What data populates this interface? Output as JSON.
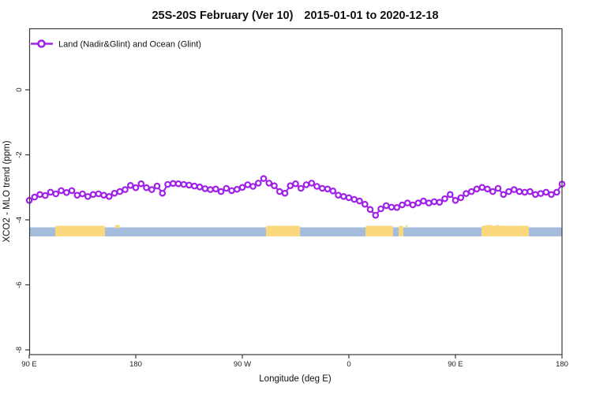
{
  "title": {
    "main": "25S-20S February (Ver 10)",
    "dates": "2015-01-01 to 2020-12-18"
  },
  "legend": {
    "label": "Land (Nadir&Glint) and Ocean (Glint)",
    "marker": "open-circle",
    "marker_color": "#A021E8"
  },
  "axes": {
    "x": {
      "label": "Longitude (deg E)",
      "ticks": [
        {
          "value": 90,
          "label": "90 E"
        },
        {
          "value": 180,
          "label": "180"
        },
        {
          "value": 270,
          "label": "90 W"
        },
        {
          "value": 360,
          "label": "0"
        },
        {
          "value": 450,
          "label": "90 E"
        },
        {
          "value": 540,
          "label": "180"
        }
      ]
    },
    "y": {
      "label": "XCO2 - MLO trend (ppm)",
      "ticks": [
        {
          "value": 0,
          "label": "0"
        },
        {
          "value": -2,
          "label": "-2"
        },
        {
          "value": -4,
          "label": "-4"
        },
        {
          "value": -6,
          "label": "-6"
        },
        {
          "value": -8,
          "label": "-8"
        }
      ]
    }
  },
  "chart_data": {
    "type": "line",
    "title": "25S-20S February (Ver 10)   2015-01-01 to 2020-12-18",
    "xlabel": "Longitude (deg E)",
    "ylabel": "XCO2 - MLO trend (ppm)",
    "xlim": [
      90,
      540
    ],
    "ylim": [
      -8.15,
      1.9
    ],
    "grid": false,
    "legend_position": "top-left",
    "series": [
      {
        "name": "Land (Nadir&Glint) and Ocean (Glint)",
        "color": "#A021E8",
        "marker": "open-circle",
        "x": [
          90,
          94.5,
          99,
          103.5,
          108,
          112.5,
          117,
          121.5,
          126,
          130.5,
          135,
          139.5,
          144,
          148.5,
          153,
          157.5,
          162,
          166.5,
          171,
          175.5,
          180,
          184.5,
          189,
          193.5,
          198,
          202.5,
          207,
          211.5,
          216,
          220.5,
          225,
          229.5,
          234,
          238.5,
          243,
          247.5,
          252,
          256.5,
          261,
          265.5,
          270,
          274.5,
          279,
          283.5,
          288,
          292.5,
          297,
          301.5,
          306,
          310.5,
          315,
          319.5,
          324,
          328.5,
          333,
          337.5,
          342,
          346.5,
          351,
          355.5,
          360,
          364.5,
          369,
          373.5,
          378,
          382.5,
          387,
          391.5,
          396,
          400.5,
          405,
          409.5,
          414,
          418.5,
          423,
          427.5,
          432,
          436.5,
          441,
          445.5,
          450,
          454.5,
          459,
          463.5,
          468,
          472.5,
          477,
          481.5,
          486,
          490.5,
          495,
          499.5,
          504,
          508.5,
          513,
          517.5,
          522,
          526.5,
          531,
          535.5,
          540
        ],
        "y": [
          -3.4,
          -3.3,
          -3.22,
          -3.25,
          -3.15,
          -3.2,
          -3.1,
          -3.16,
          -3.1,
          -3.24,
          -3.2,
          -3.28,
          -3.22,
          -3.2,
          -3.24,
          -3.28,
          -3.18,
          -3.13,
          -3.07,
          -2.94,
          -3.01,
          -2.89,
          -3.01,
          -3.07,
          -2.96,
          -3.18,
          -2.91,
          -2.88,
          -2.89,
          -2.91,
          -2.93,
          -2.96,
          -2.99,
          -3.04,
          -3.07,
          -3.05,
          -3.13,
          -3.03,
          -3.1,
          -3.06,
          -3.0,
          -2.92,
          -2.97,
          -2.87,
          -2.73,
          -2.87,
          -2.95,
          -3.13,
          -3.18,
          -2.95,
          -2.89,
          -3.03,
          -2.92,
          -2.87,
          -2.97,
          -3.03,
          -3.05,
          -3.11,
          -3.24,
          -3.28,
          -3.32,
          -3.37,
          -3.42,
          -3.52,
          -3.68,
          -3.86,
          -3.66,
          -3.56,
          -3.61,
          -3.62,
          -3.54,
          -3.48,
          -3.54,
          -3.48,
          -3.42,
          -3.48,
          -3.44,
          -3.46,
          -3.35,
          -3.22,
          -3.4,
          -3.32,
          -3.19,
          -3.13,
          -3.05,
          -3.0,
          -3.05,
          -3.13,
          -3.03,
          -3.22,
          -3.13,
          -3.07,
          -3.13,
          -3.15,
          -3.13,
          -3.22,
          -3.19,
          -3.15,
          -3.22,
          -3.15,
          -2.9
        ]
      }
    ],
    "surface_band": {
      "description": "land/ocean strip drawn near y = -4.35",
      "y_center": -4.35,
      "ocean_color": "#A5BCDC",
      "land_color": "#FAD87E",
      "segments": [
        {
          "from": 90,
          "to": 112,
          "type": "ocean"
        },
        {
          "from": 112,
          "to": 154,
          "type": "land"
        },
        {
          "from": 154,
          "to": 290,
          "type": "ocean"
        },
        {
          "from": 290,
          "to": 318.7,
          "type": "land"
        },
        {
          "from": 318.7,
          "to": 374,
          "type": "ocean"
        },
        {
          "from": 374,
          "to": 397.3,
          "type": "land"
        },
        {
          "from": 397.3,
          "to": 402,
          "type": "ocean"
        },
        {
          "from": 402,
          "to": 406,
          "type": "land"
        },
        {
          "from": 406,
          "to": 472,
          "type": "ocean"
        },
        {
          "from": 472,
          "to": 512,
          "type": "land"
        },
        {
          "from": 512,
          "to": 540,
          "type": "ocean"
        }
      ],
      "island_marks": [
        {
          "from": 162.5,
          "to": 166.5
        },
        {
          "from": 408,
          "to": 409.5
        },
        {
          "from": 475,
          "to": 481
        },
        {
          "from": 483.5,
          "to": 487
        }
      ]
    }
  }
}
